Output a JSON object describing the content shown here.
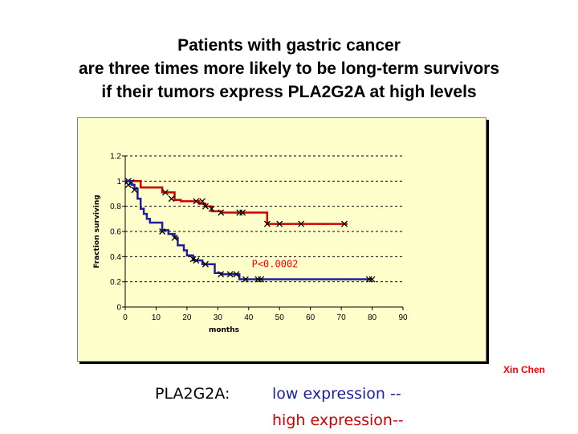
{
  "title_lines": [
    "Patients with gastric cancer",
    "are three times more likely to be long-term survivors",
    "if their tumors express PLA2G2A at high levels"
  ],
  "credit": "Xin Chen",
  "legend": {
    "label": "PLA2G2A:",
    "low": "low expression --",
    "high": "high expression--"
  },
  "colors": {
    "low": "#1f1f9a",
    "high": "#cc0000",
    "plot_background": "#ffffcc",
    "annotation": "#ff0000"
  },
  "chart_data": {
    "type": "line",
    "subtype": "kaplan-meier step curve",
    "xlabel": "months",
    "ylabel": "Fraction surviving",
    "xlim": [
      0,
      90
    ],
    "ylim": [
      0,
      1.2
    ],
    "xticks": [
      0,
      10,
      20,
      30,
      40,
      50,
      60,
      70,
      80,
      90
    ],
    "yticks": [
      0,
      0.2,
      0.4,
      0.6,
      0.8,
      1,
      1.2
    ],
    "grid": "horizontal dashed",
    "annotation": {
      "text": "P<0.0002",
      "x": 41,
      "y": 0.34
    },
    "series": [
      {
        "legend": "high",
        "steps": [
          [
            0,
            1.0
          ],
          [
            5,
            1.0
          ],
          [
            5,
            0.95
          ],
          [
            12,
            0.95
          ],
          [
            12,
            0.91
          ],
          [
            16,
            0.91
          ],
          [
            16,
            0.85
          ],
          [
            18,
            0.85
          ],
          [
            18,
            0.84
          ],
          [
            24,
            0.84
          ],
          [
            24,
            0.82
          ],
          [
            26,
            0.82
          ],
          [
            26,
            0.8
          ],
          [
            28,
            0.8
          ],
          [
            28,
            0.76
          ],
          [
            31,
            0.76
          ],
          [
            31,
            0.75
          ],
          [
            46,
            0.75
          ],
          [
            46,
            0.66
          ],
          [
            72,
            0.66
          ]
        ],
        "censor": [
          [
            1,
            1.0
          ],
          [
            2,
            0.99
          ],
          [
            13,
            0.91
          ],
          [
            15,
            0.86
          ],
          [
            23,
            0.84
          ],
          [
            25,
            0.84
          ],
          [
            26,
            0.8
          ],
          [
            28,
            0.78
          ],
          [
            31,
            0.75
          ],
          [
            37,
            0.75
          ],
          [
            38,
            0.75
          ],
          [
            46,
            0.66
          ],
          [
            50,
            0.66
          ],
          [
            57,
            0.66
          ],
          [
            71,
            0.66
          ]
        ]
      },
      {
        "legend": "low",
        "steps": [
          [
            0,
            1.0
          ],
          [
            2,
            1.0
          ],
          [
            2,
            0.97
          ],
          [
            3,
            0.97
          ],
          [
            3,
            0.94
          ],
          [
            4,
            0.94
          ],
          [
            4,
            0.86
          ],
          [
            5,
            0.86
          ],
          [
            5,
            0.78
          ],
          [
            6,
            0.78
          ],
          [
            6,
            0.74
          ],
          [
            7,
            0.74
          ],
          [
            7,
            0.7
          ],
          [
            8,
            0.7
          ],
          [
            8,
            0.67
          ],
          [
            12,
            0.67
          ],
          [
            12,
            0.61
          ],
          [
            14,
            0.61
          ],
          [
            14,
            0.58
          ],
          [
            16,
            0.58
          ],
          [
            16,
            0.55
          ],
          [
            17,
            0.55
          ],
          [
            17,
            0.49
          ],
          [
            19,
            0.49
          ],
          [
            19,
            0.45
          ],
          [
            20,
            0.45
          ],
          [
            20,
            0.41
          ],
          [
            22,
            0.41
          ],
          [
            22,
            0.37
          ],
          [
            25,
            0.37
          ],
          [
            25,
            0.34
          ],
          [
            29,
            0.34
          ],
          [
            29,
            0.27
          ],
          [
            31,
            0.27
          ],
          [
            31,
            0.26
          ],
          [
            37,
            0.26
          ],
          [
            37,
            0.22
          ],
          [
            80,
            0.22
          ]
        ],
        "censor": [
          [
            1,
            0.97
          ],
          [
            3,
            0.93
          ],
          [
            12,
            0.6
          ],
          [
            16,
            0.55
          ],
          [
            22,
            0.38
          ],
          [
            23,
            0.37
          ],
          [
            26,
            0.34
          ],
          [
            31,
            0.26
          ],
          [
            34,
            0.26
          ],
          [
            36,
            0.26
          ],
          [
            39,
            0.22
          ],
          [
            43,
            0.22
          ],
          [
            44,
            0.22
          ],
          [
            79,
            0.22
          ],
          [
            80,
            0.22
          ]
        ]
      }
    ]
  }
}
